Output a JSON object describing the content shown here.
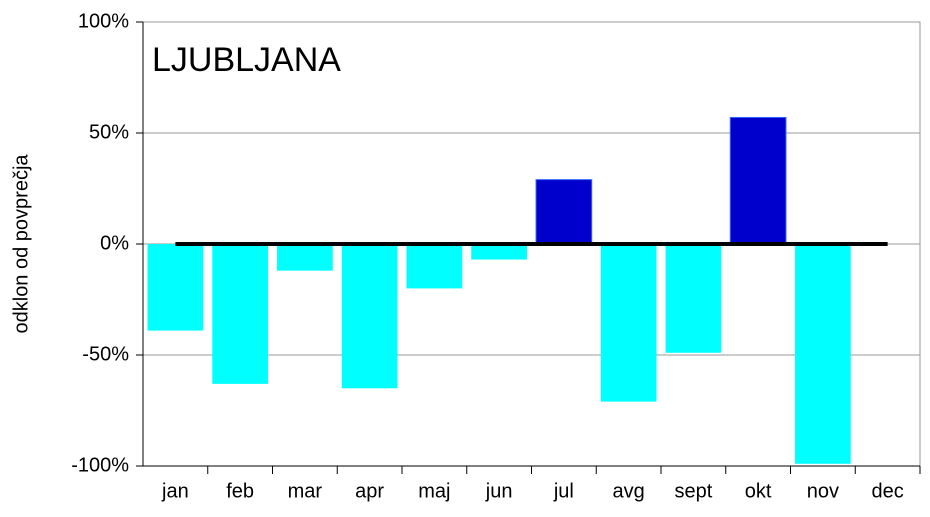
{
  "chart_data": {
    "type": "bar",
    "title": "LJUBLJANA",
    "ylabel": "odklon od povprečja",
    "categories": [
      "jan",
      "feb",
      "mar",
      "apr",
      "maj",
      "jun",
      "jul",
      "avg",
      "sept",
      "okt",
      "nov",
      "dec"
    ],
    "values": [
      -39,
      -63,
      -12,
      -65,
      -20,
      -7,
      29,
      -71,
      -49,
      57,
      -99,
      null
    ],
    "positive_color": "#0000cc",
    "negative_color": "#00ffff",
    "ylim": [
      -100,
      100
    ],
    "yticks": [
      {
        "value": -100,
        "label": "-100%"
      },
      {
        "value": -50,
        "label": "-50%"
      },
      {
        "value": 0,
        "label": "0%"
      },
      {
        "value": 50,
        "label": "50%"
      },
      {
        "value": 100,
        "label": "100%"
      }
    ],
    "grid": true
  }
}
